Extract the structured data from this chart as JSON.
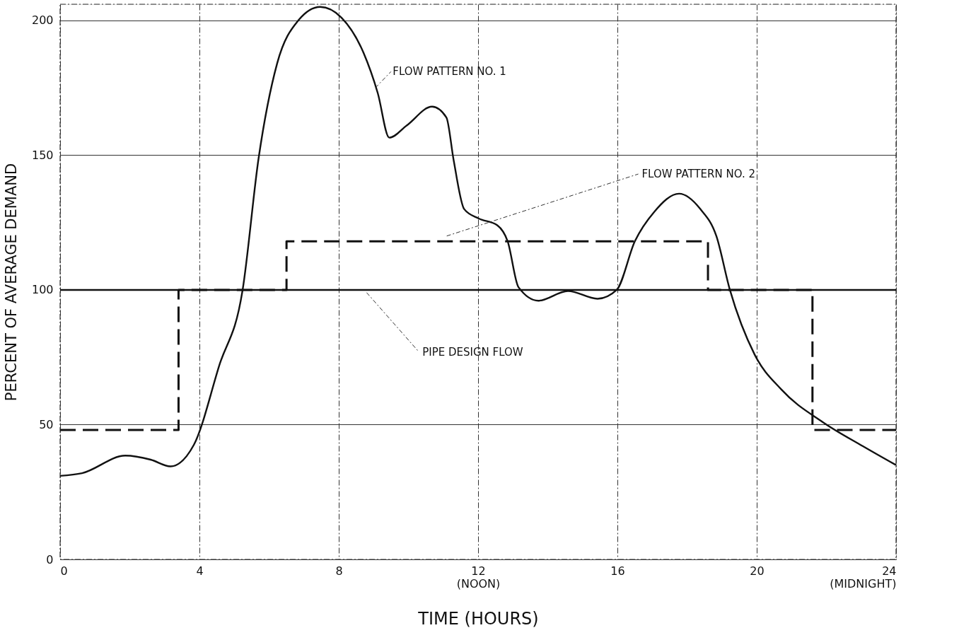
{
  "chart_data": {
    "type": "line",
    "xlabel": "TIME (HOURS)",
    "ylabel": "PERCENT OF AVERAGE DEMAND",
    "xlim": [
      0,
      24
    ],
    "xticks": [
      0,
      4,
      8,
      {
        "value": 12,
        "label": "12\n(NOON)"
      },
      16,
      20,
      {
        "value": 24,
        "label": "24\n(MIDNIGHT)"
      }
    ],
    "ylim": [
      0,
      206
    ],
    "yticks": [
      0,
      50,
      100,
      150,
      200
    ],
    "grid": true,
    "series": [
      {
        "name": "FLOW PATTERN NO. 1",
        "type": "line",
        "color": "#111111",
        "line_style": "solid",
        "x": [
          0,
          0.63,
          1.87,
          2.6,
          3.17,
          3.84,
          4.57,
          5.24,
          5.7,
          6.23,
          6.84,
          7.47,
          8.08,
          8.71,
          9.12,
          9.45,
          9.95,
          10.68,
          11.09,
          11.3,
          11.6,
          12.02,
          12.55,
          12.85,
          13.16,
          13.73,
          14.58,
          15.43,
          15.98,
          16.5,
          17.06,
          17.77,
          18.38,
          18.84,
          19.23,
          19.94,
          20.71,
          21.89,
          23.05,
          24
        ],
        "values": [
          31,
          32,
          38.5,
          37,
          34.5,
          42.5,
          72,
          100,
          149,
          184,
          200,
          205,
          201,
          188,
          173,
          156.5,
          161,
          168,
          164,
          148,
          130,
          126.5,
          124,
          118,
          101,
          96,
          99.6,
          96.7,
          100,
          118,
          129,
          135.7,
          130,
          120,
          100,
          76,
          63,
          51,
          42,
          35
        ]
      },
      {
        "name": "FLOW PATTERN NO. 2",
        "type": "step",
        "color": "#111111",
        "line_style": "dashed",
        "x": [
          0,
          3.4,
          6.5,
          18.6,
          21.6,
          24
        ],
        "values": [
          48,
          100,
          118,
          100,
          48,
          48
        ]
      },
      {
        "name": "PIPE DESIGN FLOW",
        "type": "line",
        "color": "#111111",
        "line_style": "solid",
        "x": [
          0,
          24
        ],
        "values": [
          100,
          100
        ]
      }
    ]
  }
}
